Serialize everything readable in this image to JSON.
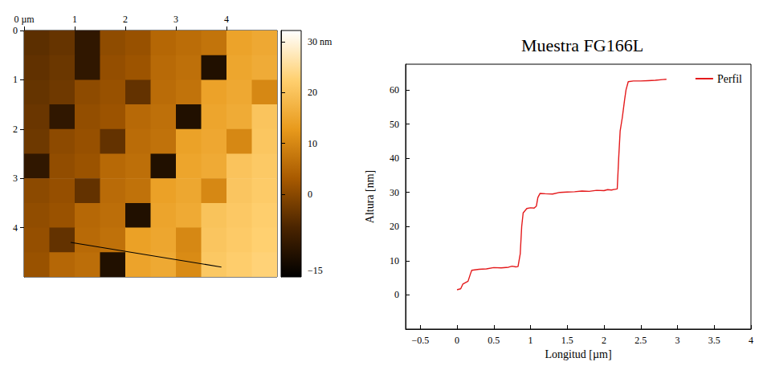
{
  "chart_data": [
    {
      "type": "heatmap",
      "xlim": [
        0,
        5
      ],
      "ylim": [
        0,
        5
      ],
      "xticks": [
        {
          "value": 0,
          "label": "0 µm"
        },
        1,
        2,
        3,
        4
      ],
      "yticks": [
        0,
        1,
        2,
        3,
        4
      ],
      "x": [
        0.25,
        0.75,
        1.25,
        1.75,
        2.25,
        2.75,
        3.25,
        3.75,
        4.25,
        4.75
      ],
      "y": [
        0.25,
        0.75,
        1.25,
        1.75,
        2.25,
        2.75,
        3.25,
        3.75,
        4.25,
        4.75
      ],
      "z": [
        [
          -4.7,
          -3.7,
          -10,
          0.5,
          1.5,
          5.0,
          6.0,
          7.0,
          14.4,
          15.4
        ],
        [
          -4.2,
          -3.2,
          -10,
          1.0,
          2.0,
          5.5,
          6.5,
          -12,
          14.9,
          15.9
        ],
        [
          -3.8,
          -2.8,
          0.4,
          1.4,
          -4,
          5.9,
          6.9,
          14.3,
          15.3,
          10
        ],
        [
          -3.3,
          -10,
          0.9,
          1.9,
          5.4,
          6.4,
          -12,
          14.8,
          15.8,
          20.3
        ],
        [
          -2.9,
          0.3,
          1.3,
          -4,
          5.8,
          6.8,
          14.2,
          15.2,
          10,
          20.7
        ],
        [
          -10,
          0.8,
          1.8,
          5.3,
          6.3,
          -12,
          14.7,
          15.7,
          20.2,
          21.2
        ],
        [
          0.2,
          1.2,
          -4,
          5.7,
          6.7,
          14.1,
          15.1,
          10,
          20.6,
          21.6
        ],
        [
          0.7,
          1.7,
          5.2,
          6.2,
          -12,
          14.6,
          15.6,
          20.1,
          21.1,
          22.1
        ],
        [
          1.1,
          -4,
          5.6,
          6.6,
          14.0,
          15.0,
          10,
          20.5,
          21.5,
          22.5
        ],
        [
          1.6,
          5.1,
          6.1,
          -12,
          14.5,
          15.5,
          10.5,
          21.0,
          22.0,
          23.0
        ]
      ],
      "colorbar_range": [
        -16.3,
        32.2
      ],
      "colorbar_ticks": [
        {
          "value": 30,
          "label": "30 nm"
        },
        20,
        10,
        0,
        {
          "value": -15,
          "label": "−15"
        }
      ],
      "scan_line": {
        "x": [
          0.92,
          3.9
        ],
        "y": [
          4.3,
          4.8
        ]
      }
    },
    {
      "type": "line",
      "title": "Muestra FG166L",
      "x_label": "Longitud [µm]",
      "y_label": "Altura [nm]",
      "x": [
        0,
        0.05,
        0.08,
        0.15,
        0.18,
        0.2,
        0.3,
        0.4,
        0.5,
        0.6,
        0.7,
        0.75,
        0.8,
        0.83,
        0.86,
        0.88,
        0.9,
        0.95,
        1.0,
        1.05,
        1.08,
        1.1,
        1.13,
        1.2,
        1.3,
        1.4,
        1.5,
        1.6,
        1.7,
        1.8,
        1.9,
        2.0,
        2.05,
        2.1,
        2.15,
        2.18,
        2.2,
        2.22,
        2.25,
        2.28,
        2.3,
        2.33,
        2.4,
        2.5,
        2.6,
        2.7,
        2.8,
        2.85
      ],
      "series": [
        {
          "name": "Perfil",
          "color": "#e41a1c",
          "values": [
            1.5,
            1.8,
            3.2,
            4,
            6,
            7.2,
            7.5,
            7.6,
            8,
            7.9,
            8.1,
            8.4,
            8.2,
            8.3,
            12,
            20,
            24,
            25.3,
            25.5,
            25.4,
            26,
            28.5,
            29.7,
            29.6,
            29.5,
            30,
            30.1,
            30.2,
            30.4,
            30.3,
            30.6,
            30.5,
            30.8,
            30.7,
            30.9,
            31,
            40,
            48,
            52,
            57,
            60,
            62.4,
            62.6,
            62.6,
            62.7,
            62.8,
            63,
            63.1
          ]
        }
      ],
      "xlim": [
        -0.7,
        4
      ],
      "ylim": [
        -10,
        67.5
      ],
      "xticks": [
        {
          "value": -0.5,
          "label": "−0.5"
        },
        0,
        0.5,
        1,
        1.5,
        2,
        2.5,
        3,
        3.5,
        4
      ],
      "yticks": [
        0,
        10,
        20,
        30,
        40,
        50,
        60
      ],
      "legend": "upper right"
    }
  ]
}
